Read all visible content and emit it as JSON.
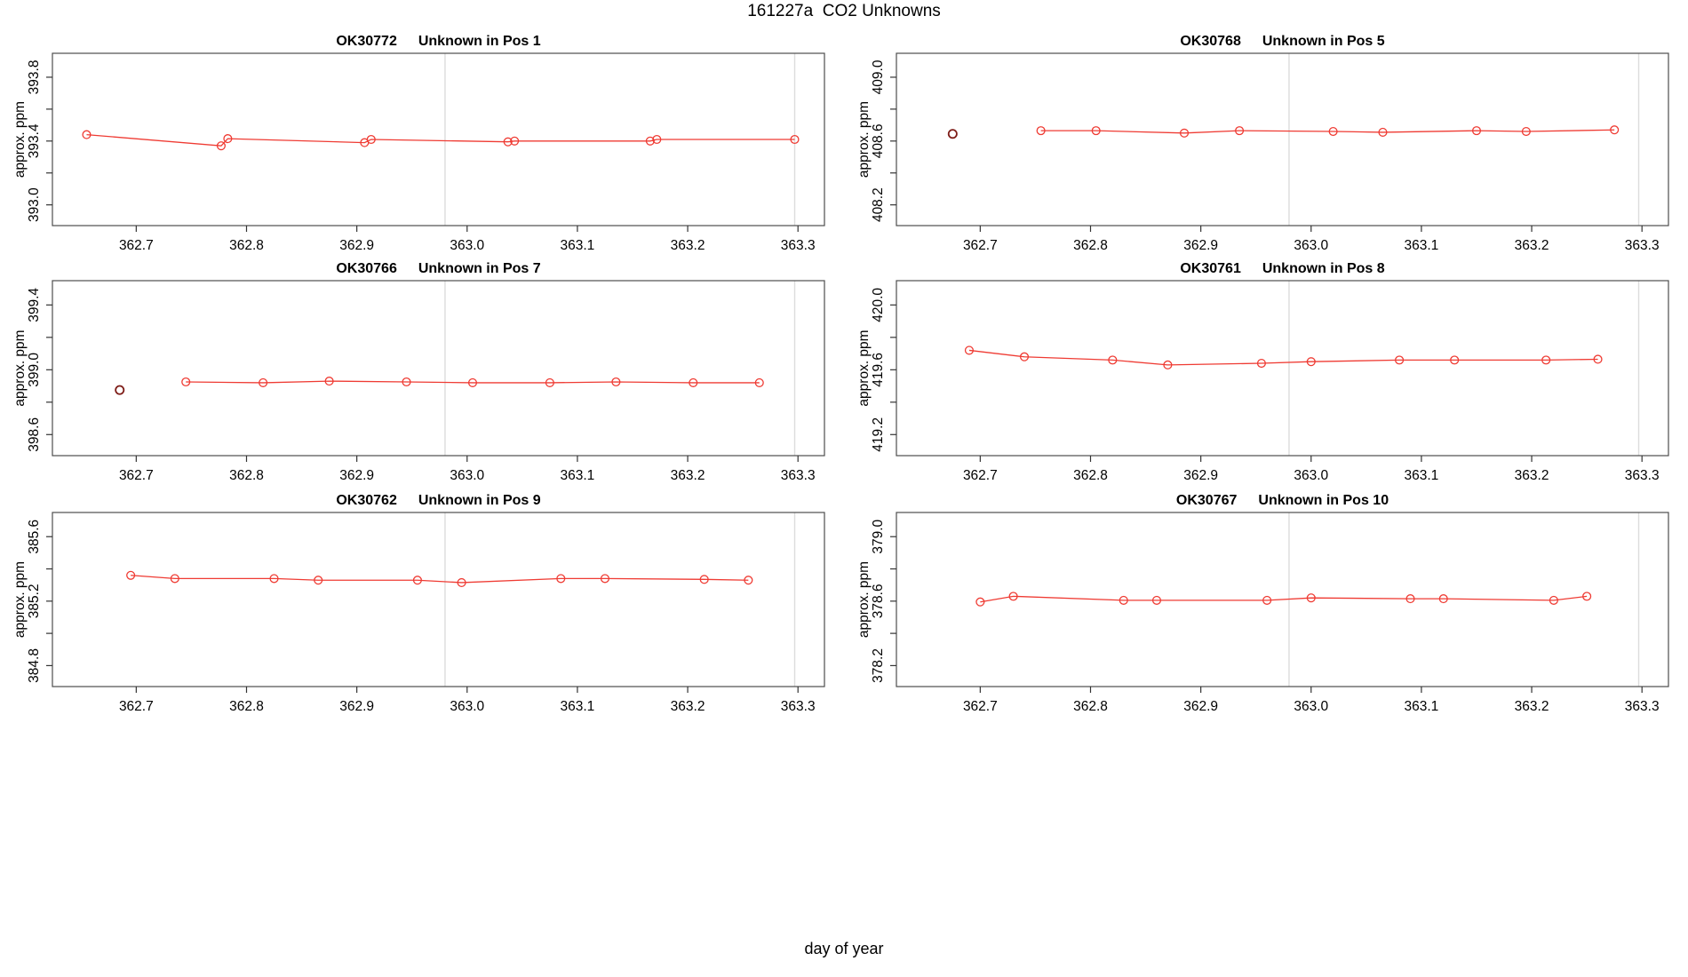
{
  "figure": {
    "title": "161227a  CO2 Unknowns",
    "outer_xlabel": "day of year"
  },
  "chart_data": {
    "type": "line",
    "title": "161227a  CO2 Unknowns",
    "xlabel": "day of year",
    "ylabel": "approx. ppm",
    "legend": "none",
    "grid": false,
    "marker": "open-circle",
    "xlim": [
      362.624,
      363.324
    ],
    "x_tick_values": [
      362.7,
      362.8,
      362.9,
      363.0,
      363.1,
      363.2,
      363.3
    ],
    "x_tick_labels": [
      "362.7",
      "362.8",
      "362.9",
      "363.0",
      "363.1",
      "363.2",
      "363.3"
    ],
    "reference_vlines": [
      362.98,
      363.297
    ],
    "colors": {
      "series": "#ef3b33",
      "isolated_point": "#7e1d18",
      "vline": "#dcdcdc",
      "box": "#4d4d4d",
      "tick": "#333333",
      "text": "#000000"
    },
    "panels": [
      {
        "title_id": "OK30772",
        "title_label": "Unknown in Pos 1",
        "ylabel": "approx. ppm",
        "ylim": [
          392.87,
          393.95
        ],
        "yticks": [
          {
            "v": 393.0,
            "label": "393.0"
          },
          {
            "v": 393.2,
            "label": ""
          },
          {
            "v": 393.4,
            "label": "393.4"
          },
          {
            "v": 393.6,
            "label": ""
          },
          {
            "v": 393.8,
            "label": "393.8"
          }
        ],
        "line_points": [
          [
            362.655,
            393.44
          ],
          [
            362.777,
            393.37
          ],
          [
            362.783,
            393.415
          ],
          [
            362.907,
            393.39
          ],
          [
            362.913,
            393.41
          ],
          [
            363.037,
            393.395
          ],
          [
            363.043,
            393.4
          ],
          [
            363.166,
            393.4
          ],
          [
            363.172,
            393.41
          ],
          [
            363.297,
            393.41
          ]
        ],
        "isolated_points": []
      },
      {
        "title_id": "OK30768",
        "title_label": "Unknown in Pos 5",
        "ylabel": "approx. ppm",
        "ylim": [
          408.07,
          409.15
        ],
        "yticks": [
          {
            "v": 408.2,
            "label": "408.2"
          },
          {
            "v": 408.4,
            "label": ""
          },
          {
            "v": 408.6,
            "label": "408.6"
          },
          {
            "v": 408.8,
            "label": ""
          },
          {
            "v": 409.0,
            "label": "409.0"
          }
        ],
        "line_points": [
          [
            362.755,
            408.665
          ],
          [
            362.805,
            408.665
          ],
          [
            362.885,
            408.65
          ],
          [
            362.935,
            408.665
          ],
          [
            363.02,
            408.66
          ],
          [
            363.065,
            408.655
          ],
          [
            363.15,
            408.665
          ],
          [
            363.195,
            408.66
          ],
          [
            363.275,
            408.67
          ]
        ],
        "isolated_points": [
          [
            362.675,
            408.645
          ]
        ]
      },
      {
        "title_id": "OK30766",
        "title_label": "Unknown in Pos 7",
        "ylabel": "approx. ppm",
        "ylim": [
          398.47,
          399.55
        ],
        "yticks": [
          {
            "v": 398.6,
            "label": "398.6"
          },
          {
            "v": 398.8,
            "label": ""
          },
          {
            "v": 399.0,
            "label": "399.0"
          },
          {
            "v": 399.2,
            "label": ""
          },
          {
            "v": 399.4,
            "label": "399.4"
          }
        ],
        "line_points": [
          [
            362.745,
            398.925
          ],
          [
            362.815,
            398.92
          ],
          [
            362.875,
            398.93
          ],
          [
            362.945,
            398.925
          ],
          [
            363.005,
            398.92
          ],
          [
            363.075,
            398.92
          ],
          [
            363.135,
            398.925
          ],
          [
            363.205,
            398.92
          ],
          [
            363.265,
            398.92
          ]
        ],
        "isolated_points": [
          [
            362.685,
            398.875
          ]
        ]
      },
      {
        "title_id": "OK30761",
        "title_label": "Unknown in Pos 8",
        "ylabel": "approx. ppm",
        "ylim": [
          419.07,
          420.15
        ],
        "yticks": [
          {
            "v": 419.2,
            "label": "419.2"
          },
          {
            "v": 419.4,
            "label": ""
          },
          {
            "v": 419.6,
            "label": "419.6"
          },
          {
            "v": 419.8,
            "label": ""
          },
          {
            "v": 420.0,
            "label": "420.0"
          }
        ],
        "line_points": [
          [
            362.69,
            419.72
          ],
          [
            362.74,
            419.68
          ],
          [
            362.82,
            419.66
          ],
          [
            362.87,
            419.63
          ],
          [
            362.955,
            419.64
          ],
          [
            363.0,
            419.65
          ],
          [
            363.08,
            419.66
          ],
          [
            363.13,
            419.66
          ],
          [
            363.213,
            419.66
          ],
          [
            363.26,
            419.665
          ]
        ],
        "isolated_points": []
      },
      {
        "title_id": "OK30762",
        "title_label": "Unknown in Pos 9",
        "ylabel": "approx. ppm",
        "ylim": [
          384.67,
          385.75
        ],
        "yticks": [
          {
            "v": 384.8,
            "label": "384.8"
          },
          {
            "v": 385.0,
            "label": ""
          },
          {
            "v": 385.2,
            "label": "385.2"
          },
          {
            "v": 385.4,
            "label": ""
          },
          {
            "v": 385.6,
            "label": "385.6"
          }
        ],
        "line_points": [
          [
            362.695,
            385.36
          ],
          [
            362.735,
            385.34
          ],
          [
            362.825,
            385.34
          ],
          [
            362.865,
            385.33
          ],
          [
            362.955,
            385.33
          ],
          [
            362.995,
            385.315
          ],
          [
            363.085,
            385.34
          ],
          [
            363.125,
            385.34
          ],
          [
            363.215,
            385.335
          ],
          [
            363.255,
            385.33
          ]
        ],
        "isolated_points": []
      },
      {
        "title_id": "OK30767",
        "title_label": "Unknown in Pos 10",
        "ylabel": "approx. ppm",
        "ylim": [
          378.07,
          379.15
        ],
        "yticks": [
          {
            "v": 378.2,
            "label": "378.2"
          },
          {
            "v": 378.4,
            "label": ""
          },
          {
            "v": 378.6,
            "label": "378.6"
          },
          {
            "v": 378.8,
            "label": ""
          },
          {
            "v": 379.0,
            "label": "379.0"
          }
        ],
        "line_points": [
          [
            362.7,
            378.595
          ],
          [
            362.73,
            378.63
          ],
          [
            362.83,
            378.605
          ],
          [
            362.86,
            378.605
          ],
          [
            362.96,
            378.605
          ],
          [
            363.0,
            378.62
          ],
          [
            363.09,
            378.615
          ],
          [
            363.12,
            378.615
          ],
          [
            363.22,
            378.605
          ],
          [
            363.25,
            378.63
          ]
        ],
        "isolated_points": []
      }
    ]
  }
}
